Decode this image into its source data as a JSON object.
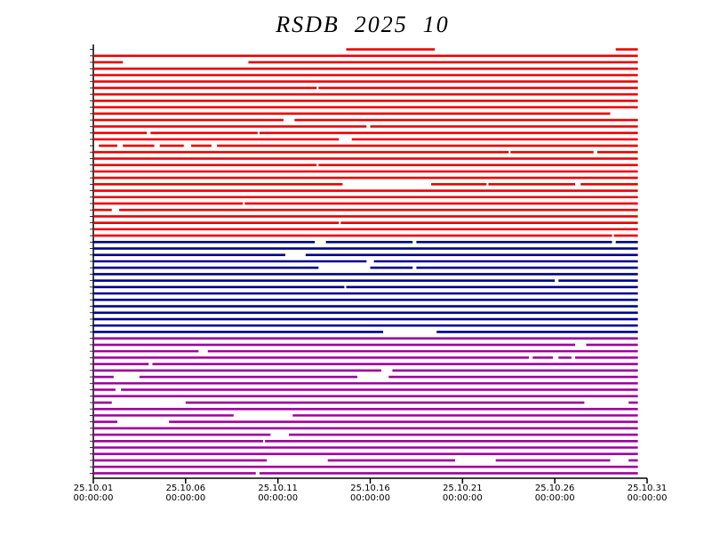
{
  "chart_data": {
    "type": "availability",
    "title": "RSDB  2025  10",
    "xlim": [
      0,
      30
    ],
    "xticks": [
      {
        "value": 0,
        "label": "25.10.01\n00:00:00"
      },
      {
        "value": 5,
        "label": "25.10.06\n00:00:00"
      },
      {
        "value": 10,
        "label": "25.10.11\n00:00:00"
      },
      {
        "value": 15,
        "label": "25.10.16\n00:00:00"
      },
      {
        "value": 20,
        "label": "25.10.21\n00:00:00"
      },
      {
        "value": 25,
        "label": "25.10.26\n00:00:00"
      },
      {
        "value": 30,
        "label": "25.10.31\n00:00:00"
      }
    ],
    "groups": [
      {
        "color": "#ee0000",
        "rows": [
          [
            [
              13.7,
              18.5
            ],
            [
              28.3,
              29.5
            ]
          ],
          [
            [
              0,
              29.5
            ]
          ],
          [
            [
              0,
              1.6
            ],
            [
              8.4,
              29.5
            ]
          ],
          [
            [
              0,
              29.5
            ]
          ],
          [
            [
              0,
              29.5
            ]
          ],
          [
            [
              0,
              29.5
            ]
          ],
          [
            [
              0,
              12.1
            ],
            [
              12.2,
              29.5
            ]
          ],
          [
            [
              0,
              29.5
            ]
          ],
          [
            [
              0,
              29.5
            ]
          ],
          [
            [
              0,
              29.5
            ]
          ],
          [
            [
              0,
              28.0
            ]
          ],
          [
            [
              0,
              10.3
            ],
            [
              10.9,
              29.5
            ]
          ],
          [
            [
              0,
              14.8
            ],
            [
              15.0,
              29.5
            ]
          ],
          [
            [
              0,
              2.9
            ],
            [
              3.1,
              8.9
            ],
            [
              9.0,
              29.5
            ]
          ],
          [
            [
              0,
              13.3
            ],
            [
              14.0,
              29.5
            ]
          ],
          [
            [
              0.3,
              1.3
            ],
            [
              1.6,
              3.3
            ],
            [
              3.6,
              4.9
            ],
            [
              5.3,
              6.4
            ],
            [
              6.7,
              29.5
            ]
          ],
          [
            [
              0,
              22.5
            ],
            [
              22.6,
              27.1
            ],
            [
              27.3,
              29.5
            ]
          ],
          [
            [
              0,
              29.5
            ]
          ],
          [
            [
              0,
              12.1
            ],
            [
              12.2,
              29.5
            ]
          ],
          [
            [
              0,
              29.5
            ]
          ],
          [
            [
              0,
              29.5
            ]
          ],
          [
            [
              0,
              13.5
            ],
            [
              18.3,
              21.3
            ],
            [
              21.4,
              26.1
            ],
            [
              26.4,
              29.5
            ]
          ],
          [
            [
              0,
              29.5
            ]
          ],
          [
            [
              0,
              29.5
            ]
          ],
          [
            [
              0,
              8.1
            ],
            [
              8.2,
              29.5
            ]
          ],
          [
            [
              0,
              1.0
            ],
            [
              1.4,
              29.5
            ]
          ],
          [
            [
              0,
              29.5
            ]
          ],
          [
            [
              0,
              13.3
            ],
            [
              13.4,
              29.5
            ]
          ],
          [
            [
              0,
              29.5
            ]
          ],
          [
            [
              0,
              28.1
            ],
            [
              28.2,
              29.5
            ]
          ]
        ]
      },
      {
        "color": "#000090",
        "rows": [
          [
            [
              0,
              12.0
            ],
            [
              12.6,
              17.3
            ],
            [
              17.5,
              28.1
            ],
            [
              28.3,
              29.5
            ]
          ],
          [
            [
              0,
              29.5
            ]
          ],
          [
            [
              0,
              10.4
            ],
            [
              11.5,
              29.5
            ]
          ],
          [
            [
              0,
              14.8
            ],
            [
              15.2,
              29.5
            ]
          ],
          [
            [
              0,
              12.2
            ],
            [
              15.0,
              17.3
            ],
            [
              17.5,
              29.5
            ]
          ],
          [
            [
              0,
              29.5
            ]
          ],
          [
            [
              0,
              25.0
            ],
            [
              25.2,
              29.5
            ]
          ],
          [
            [
              0,
              13.6
            ],
            [
              13.7,
              29.5
            ]
          ],
          [
            [
              0,
              29.5
            ]
          ],
          [
            [
              0,
              29.5
            ]
          ],
          [
            [
              0,
              29.5
            ]
          ],
          [
            [
              0,
              29.5
            ]
          ],
          [
            [
              0,
              29.5
            ]
          ],
          [
            [
              0,
              29.5
            ]
          ],
          [
            [
              0,
              15.7
            ],
            [
              18.6,
              29.5
            ]
          ]
        ]
      },
      {
        "color": "#a000a0",
        "rows": [
          [
            [
              0,
              29.5
            ]
          ],
          [
            [
              0,
              26.1
            ],
            [
              26.7,
              29.5
            ]
          ],
          [
            [
              0,
              5.7
            ],
            [
              6.2,
              29.5
            ]
          ],
          [
            [
              0,
              23.6
            ],
            [
              23.8,
              24.9
            ],
            [
              25.2,
              25.9
            ],
            [
              26.1,
              29.5
            ]
          ],
          [
            [
              0,
              3.0
            ],
            [
              3.2,
              29.5
            ]
          ],
          [
            [
              0,
              15.6
            ],
            [
              16.2,
              29.5
            ]
          ],
          [
            [
              0,
              1.1
            ],
            [
              2.5,
              14.3
            ],
            [
              16.0,
              29.5
            ]
          ],
          [
            [
              0,
              29.5
            ]
          ],
          [
            [
              0,
              1.2
            ],
            [
              1.5,
              29.5
            ]
          ],
          [
            [
              0,
              29.5
            ]
          ],
          [
            [
              0,
              1.0
            ],
            [
              5.0,
              26.6
            ],
            [
              29.0,
              29.5
            ]
          ],
          [
            [
              0,
              29.5
            ]
          ],
          [
            [
              0,
              7.6
            ],
            [
              10.8,
              29.5
            ]
          ],
          [
            [
              0,
              1.3
            ],
            [
              4.1,
              29.5
            ]
          ],
          [
            [
              0,
              29.5
            ]
          ],
          [
            [
              0,
              9.6
            ],
            [
              10.6,
              29.5
            ]
          ],
          [
            [
              0,
              9.2
            ],
            [
              9.3,
              29.5
            ]
          ],
          [
            [
              0,
              29.5
            ]
          ],
          [
            [
              0,
              29.5
            ]
          ],
          [
            [
              0,
              9.4
            ],
            [
              12.7,
              19.6
            ],
            [
              21.8,
              28.0
            ],
            [
              29.0,
              29.5
            ]
          ],
          [
            [
              0,
              29.5
            ]
          ],
          [
            [
              0,
              8.8
            ],
            [
              9.0,
              29.5
            ]
          ]
        ]
      }
    ]
  }
}
